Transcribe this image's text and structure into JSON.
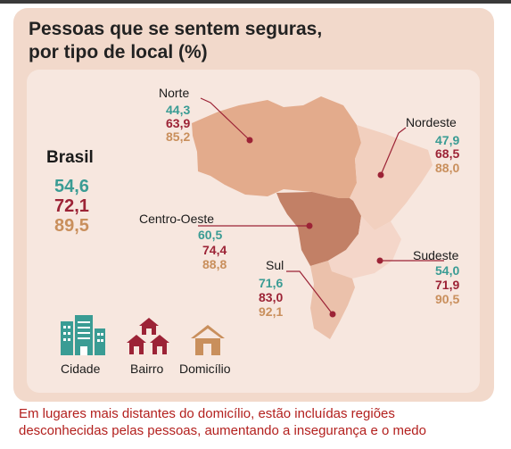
{
  "title_line1": "Pessoas que se sentem seguras,",
  "title_line2": "por tipo de local (%)",
  "brasil": {
    "label": "Brasil",
    "cidade": "54,6",
    "bairro": "72,1",
    "domicilio": "89,5"
  },
  "regions": {
    "norte": {
      "label": "Norte",
      "cidade": "44,3",
      "bairro": "63,9",
      "domicilio": "85,2"
    },
    "nordeste": {
      "label": "Nordeste",
      "cidade": "47,9",
      "bairro": "68,5",
      "domicilio": "88,0"
    },
    "centro_oeste": {
      "label": "Centro-Oeste",
      "cidade": "60,5",
      "bairro": "74,4",
      "domicilio": "88,8"
    },
    "sul": {
      "label": "Sul",
      "cidade": "71,6",
      "bairro": "83,0",
      "domicilio": "92,1"
    },
    "sudeste": {
      "label": "Sudeste",
      "cidade": "54,0",
      "bairro": "71,9",
      "domicilio": "90,5"
    }
  },
  "legend": {
    "cidade": "Cidade",
    "bairro": "Bairro",
    "domicilio": "Domicílio"
  },
  "legend_icons": {
    "cidade": "building-icon",
    "bairro": "houses-icon",
    "domicilio": "house-icon"
  },
  "colors": {
    "cidade": "#3a9c94",
    "bairro": "#9c2336",
    "domicilio": "#c98f5c",
    "footer": "#b3201e"
  },
  "footer_line1": "Em lugares mais distantes do domicílio, estão incluídas regiões",
  "footer_line2": "desconhecidas pelas pessoas, aumentando a insegurança e o medo"
}
